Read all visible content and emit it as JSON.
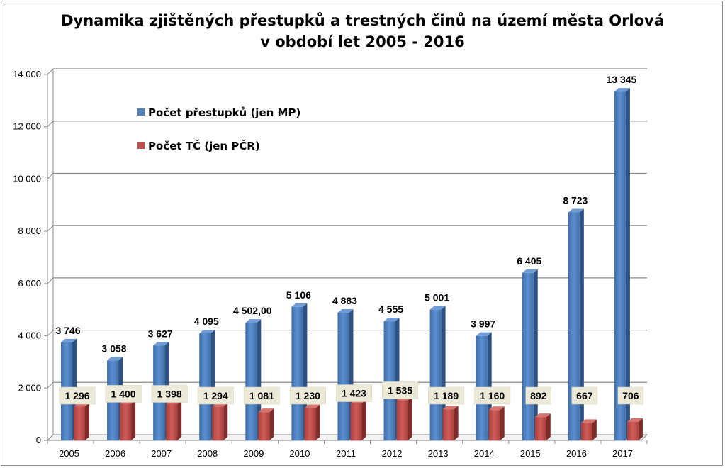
{
  "chart_data": {
    "type": "bar",
    "title_lines": [
      "Dynamika zjištěných přestupků a trestných činů na území města Orlová",
      "v období let 2005 - 2016"
    ],
    "categories": [
      "2005",
      "2006",
      "2007",
      "2008",
      "2009",
      "2010",
      "2011",
      "2012",
      "2013",
      "2014",
      "2015",
      "2016",
      "2017"
    ],
    "series": [
      {
        "name": "Počet přestupků (jen MP)",
        "color": "#4f81bd",
        "values": [
          3746,
          3058,
          3627,
          4095,
          4502,
          5106,
          4883,
          4555,
          5001,
          3997,
          6405,
          8723,
          13345
        ],
        "labels": [
          "3 746",
          "3 058",
          "3 627",
          "4 095",
          "4 502,00",
          "5 106",
          "4 883",
          "4 555",
          "5 001",
          "3 997",
          "6 405",
          "8 723",
          "13 345"
        ]
      },
      {
        "name": "Počet TČ (jen PČR)",
        "color": "#c0504d",
        "values": [
          1296,
          1400,
          1398,
          1294,
          1081,
          1230,
          1423,
          1535,
          1189,
          1160,
          892,
          667,
          706
        ],
        "labels": [
          "1 296",
          "1 400",
          "1 398",
          "1 294",
          "1 081",
          "1 230",
          "1 423",
          "1 535",
          "1 189",
          "1 160",
          "892",
          "667",
          "706"
        ]
      }
    ],
    "ylim": [
      0,
      14000
    ],
    "yticks": [
      0,
      2000,
      4000,
      6000,
      8000,
      10000,
      12000,
      14000
    ],
    "ytick_labels": [
      "0",
      "2 000",
      "4 000",
      "6 000",
      "8 000",
      "10 000",
      "12 000",
      "14 000"
    ],
    "xlabel": "",
    "ylabel": "",
    "legend_position": "top-left",
    "grid": true
  }
}
